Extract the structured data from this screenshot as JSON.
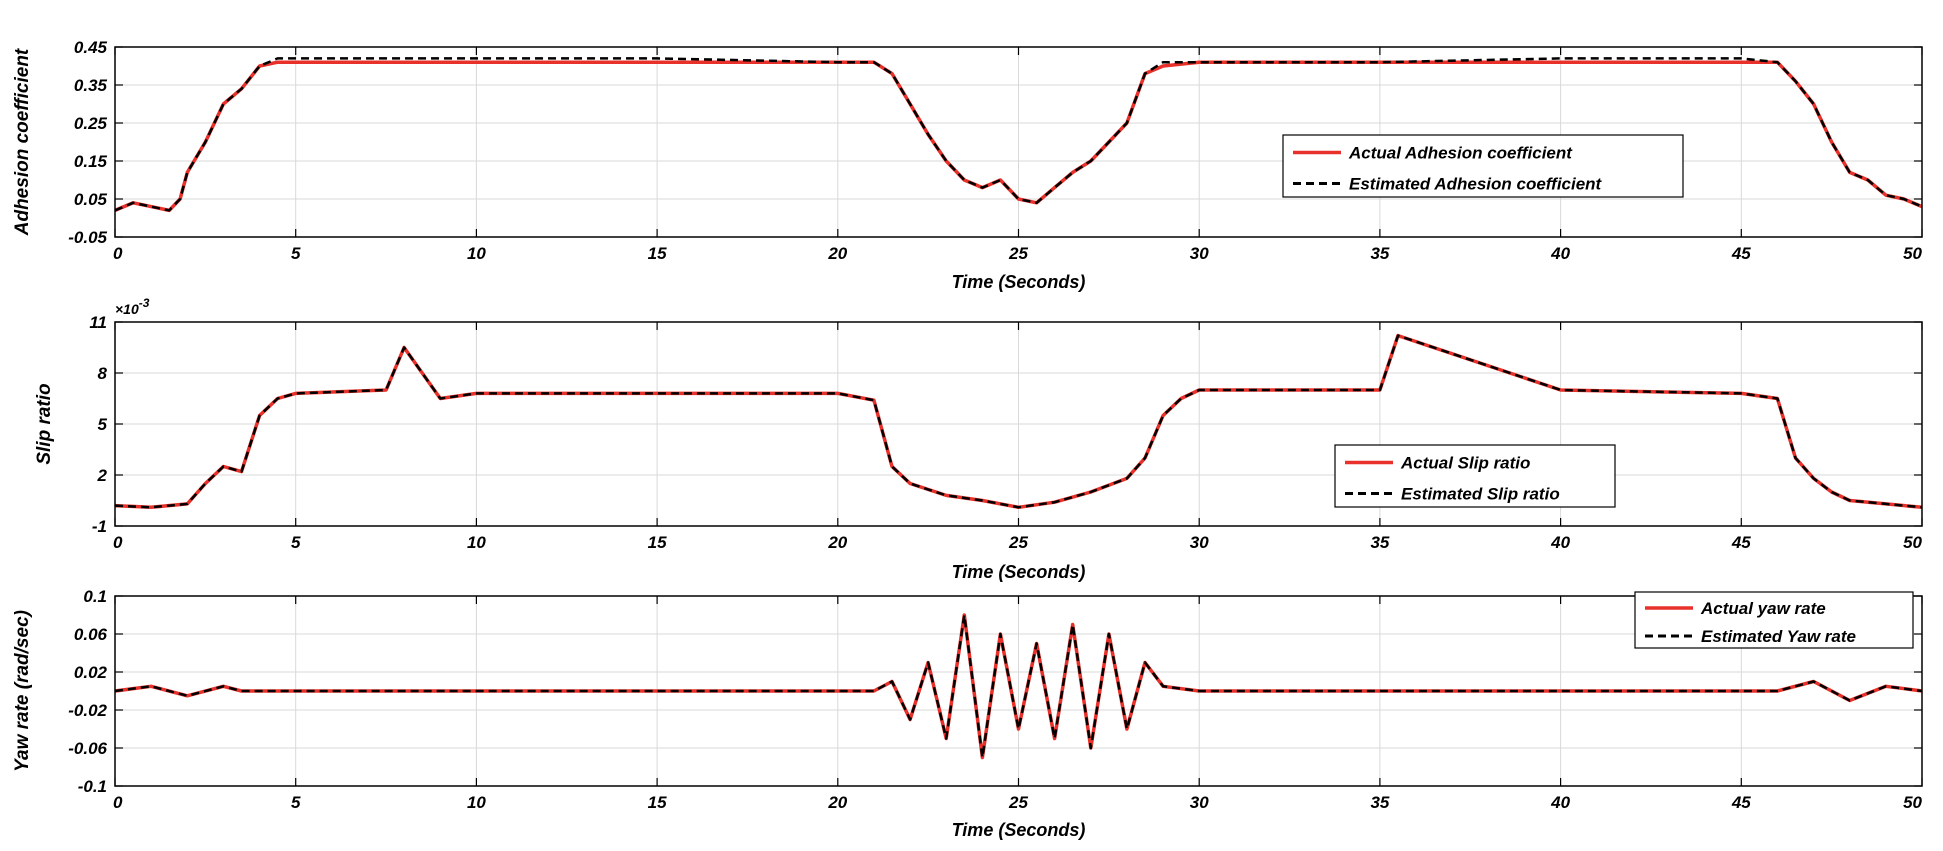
{
  "colors": {
    "actual": "#e8312a",
    "estimated": "#000000",
    "grid": "#d9d9d9",
    "axis": "#000000"
  },
  "chart_data": [
    {
      "type": "line",
      "id": "adhesion",
      "xlabel": "Time (Seconds)",
      "ylabel": "Adhesion coefficient",
      "xlim": [
        0,
        50
      ],
      "ylim": [
        -0.05,
        0.45
      ],
      "xticks": [
        0,
        5,
        10,
        15,
        20,
        25,
        30,
        35,
        40,
        45,
        50
      ],
      "xtick_labels": [
        "0",
        "5",
        "10",
        "15",
        "20",
        "25",
        "30",
        "35",
        "40",
        "45",
        "50"
      ],
      "yticks": [
        -0.05,
        0.05,
        0.15,
        0.25,
        0.35,
        0.45
      ],
      "ytick_labels": [
        "-0.05",
        "0.05",
        "0.15",
        "0.25",
        "0.35",
        "0.45"
      ],
      "legend": [
        "Actual Adhesion coefficient",
        "Estimated Adhesion coefficient"
      ],
      "legend_location": "center-right",
      "grid": true,
      "series": [
        {
          "name": "Actual Adhesion coefficient",
          "style": "solid",
          "x": [
            0,
            0.5,
            1,
            1.5,
            1.8,
            2,
            2.5,
            3,
            3.5,
            4,
            4.5,
            10,
            15,
            20,
            21,
            21.5,
            22,
            22.5,
            23,
            23.5,
            24,
            24.5,
            25,
            25.5,
            26,
            26.5,
            27,
            27.5,
            28,
            28.5,
            29,
            30,
            35,
            40,
            45,
            46,
            46.5,
            47,
            47.5,
            48,
            48.5,
            49,
            49.5,
            50
          ],
          "y": [
            0.02,
            0.04,
            0.03,
            0.02,
            0.05,
            0.12,
            0.2,
            0.3,
            0.34,
            0.4,
            0.41,
            0.41,
            0.41,
            0.41,
            0.41,
            0.38,
            0.3,
            0.22,
            0.15,
            0.1,
            0.08,
            0.1,
            0.05,
            0.04,
            0.08,
            0.12,
            0.15,
            0.2,
            0.25,
            0.38,
            0.4,
            0.41,
            0.41,
            0.41,
            0.41,
            0.41,
            0.36,
            0.3,
            0.2,
            0.12,
            0.1,
            0.06,
            0.05,
            0.03
          ]
        },
        {
          "name": "Estimated Adhesion coefficient",
          "style": "dashed",
          "x": [
            0,
            0.5,
            1,
            1.5,
            1.8,
            2,
            2.5,
            3,
            3.5,
            4,
            4.5,
            10,
            15,
            20,
            21,
            21.5,
            22,
            22.5,
            23,
            23.5,
            24,
            24.5,
            25,
            25.5,
            26,
            26.5,
            27,
            27.5,
            28,
            28.5,
            29,
            30,
            35,
            40,
            45,
            46,
            46.5,
            47,
            47.5,
            48,
            48.5,
            49,
            49.5,
            50
          ],
          "y": [
            0.02,
            0.04,
            0.03,
            0.02,
            0.05,
            0.12,
            0.2,
            0.3,
            0.34,
            0.4,
            0.42,
            0.42,
            0.42,
            0.41,
            0.41,
            0.38,
            0.3,
            0.22,
            0.15,
            0.1,
            0.08,
            0.1,
            0.05,
            0.04,
            0.08,
            0.12,
            0.15,
            0.2,
            0.25,
            0.38,
            0.41,
            0.41,
            0.41,
            0.42,
            0.42,
            0.41,
            0.36,
            0.3,
            0.2,
            0.12,
            0.1,
            0.06,
            0.05,
            0.03
          ]
        }
      ]
    },
    {
      "type": "line",
      "id": "slip",
      "xlabel": "Time (Seconds)",
      "ylabel": "Slip ratio",
      "exponent": "×10",
      "exponent_power": "-3",
      "xlim": [
        0,
        50
      ],
      "ylim": [
        -1,
        11
      ],
      "xticks": [
        0,
        5,
        10,
        15,
        20,
        25,
        30,
        35,
        40,
        45,
        50
      ],
      "xtick_labels": [
        "0",
        "5",
        "10",
        "15",
        "20",
        "25",
        "30",
        "35",
        "40",
        "45",
        "50"
      ],
      "yticks": [
        -1,
        2,
        5,
        8,
        11
      ],
      "ytick_labels": [
        "-1",
        "2",
        "5",
        "8",
        "11"
      ],
      "legend": [
        "Actual Slip ratio",
        "Estimated Slip ratio"
      ],
      "legend_location": "lower-center-right",
      "grid": true,
      "series": [
        {
          "name": "Actual Slip ratio",
          "style": "solid",
          "x": [
            0,
            1,
            2,
            2.5,
            3,
            3.5,
            4,
            4.5,
            5,
            7.5,
            8,
            9,
            10,
            15,
            20,
            21,
            21.5,
            22,
            23,
            24,
            25,
            26,
            27,
            28,
            28.5,
            29,
            29.5,
            30,
            35,
            35.5,
            40,
            45,
            46,
            46.5,
            47,
            47.5,
            48,
            49,
            50
          ],
          "y": [
            0.2,
            0.1,
            0.3,
            1.5,
            2.5,
            2.2,
            5.5,
            6.5,
            6.8,
            7.0,
            9.5,
            6.5,
            6.8,
            6.8,
            6.8,
            6.4,
            2.5,
            1.5,
            0.8,
            0.5,
            0.1,
            0.4,
            1.0,
            1.8,
            3.0,
            5.5,
            6.5,
            7.0,
            7.0,
            10.2,
            7.0,
            6.8,
            6.5,
            3.0,
            1.8,
            1.0,
            0.5,
            0.3,
            0.1
          ]
        },
        {
          "name": "Estimated Slip ratio",
          "style": "dashed",
          "x": [
            0,
            1,
            2,
            2.5,
            3,
            3.5,
            4,
            4.5,
            5,
            7.5,
            8,
            9,
            10,
            15,
            20,
            21,
            21.5,
            22,
            23,
            24,
            25,
            26,
            27,
            28,
            28.5,
            29,
            29.5,
            30,
            35,
            35.5,
            40,
            45,
            46,
            46.5,
            47,
            47.5,
            48,
            49,
            50
          ],
          "y": [
            0.2,
            0.1,
            0.3,
            1.5,
            2.5,
            2.2,
            5.5,
            6.5,
            6.8,
            7.0,
            9.5,
            6.5,
            6.8,
            6.8,
            6.8,
            6.4,
            2.5,
            1.5,
            0.8,
            0.5,
            0.1,
            0.4,
            1.0,
            1.8,
            3.0,
            5.5,
            6.5,
            7.0,
            7.0,
            10.2,
            7.0,
            6.8,
            6.5,
            3.0,
            1.8,
            1.0,
            0.5,
            0.3,
            0.1
          ]
        }
      ]
    },
    {
      "type": "line",
      "id": "yaw",
      "xlabel": "Time (Seconds)",
      "ylabel": "Yaw rate (rad/sec)",
      "xlim": [
        0,
        50
      ],
      "ylim": [
        -0.1,
        0.1
      ],
      "xticks": [
        0,
        5,
        10,
        15,
        20,
        25,
        30,
        35,
        40,
        45,
        50
      ],
      "xtick_labels": [
        "0",
        "5",
        "10",
        "15",
        "20",
        "25",
        "30",
        "35",
        "40",
        "45",
        "50"
      ],
      "yticks": [
        -0.1,
        -0.06,
        -0.02,
        0.02,
        0.06,
        0.1
      ],
      "ytick_labels": [
        "-0.1",
        "-0.06",
        "-0.02",
        "0.02",
        "0.06",
        "0.1"
      ],
      "legend": [
        "Actual yaw rate",
        "Estimated Yaw rate"
      ],
      "legend_location": "top-right",
      "grid": true,
      "series": [
        {
          "name": "Actual yaw rate",
          "style": "solid",
          "x": [
            0,
            1,
            2,
            3,
            3.5,
            4,
            10,
            20,
            21,
            21.5,
            22,
            22.5,
            23,
            23.5,
            24,
            24.5,
            25,
            25.5,
            26,
            26.5,
            27,
            27.5,
            28,
            28.5,
            29,
            30,
            40,
            46,
            47,
            48,
            49,
            50
          ],
          "y": [
            0,
            0.005,
            -0.005,
            0.005,
            0,
            0,
            0,
            0,
            0,
            0.01,
            -0.03,
            0.03,
            -0.05,
            0.08,
            -0.07,
            0.06,
            -0.04,
            0.05,
            -0.05,
            0.07,
            -0.06,
            0.06,
            -0.04,
            0.03,
            0.005,
            0,
            0,
            0,
            0.01,
            -0.01,
            0.005,
            0
          ]
        },
        {
          "name": "Estimated Yaw rate",
          "style": "dashed",
          "x": [
            0,
            1,
            2,
            3,
            3.5,
            4,
            10,
            20,
            21,
            21.5,
            22,
            22.5,
            23,
            23.5,
            24,
            24.5,
            25,
            25.5,
            26,
            26.5,
            27,
            27.5,
            28,
            28.5,
            29,
            30,
            40,
            46,
            47,
            48,
            49,
            50
          ],
          "y": [
            0,
            0.005,
            -0.005,
            0.005,
            0,
            0,
            0,
            0,
            0,
            0.01,
            -0.03,
            0.03,
            -0.05,
            0.08,
            -0.07,
            0.06,
            -0.04,
            0.05,
            -0.05,
            0.07,
            -0.06,
            0.06,
            -0.04,
            0.03,
            0.005,
            0,
            0,
            0,
            0.01,
            -0.01,
            0.005,
            0
          ]
        }
      ]
    }
  ]
}
